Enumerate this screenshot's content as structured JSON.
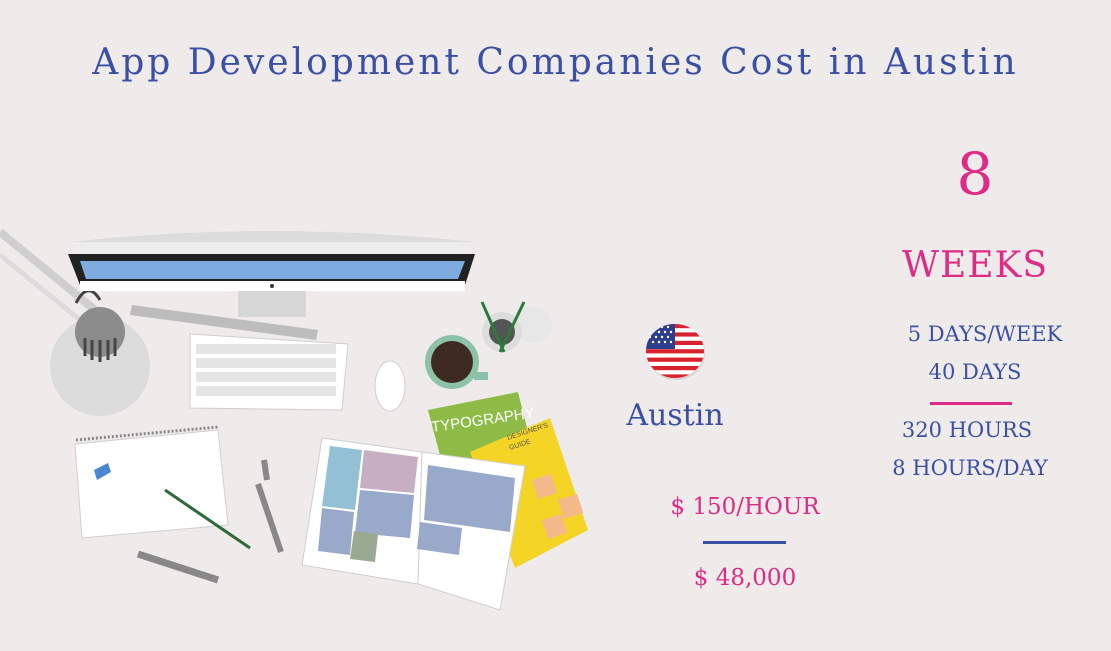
{
  "title": "App Development Companies Cost in Austin",
  "timeline": {
    "weeks_number": "8",
    "weeks_label": "WEEKS",
    "days_per_week": "5 DAYS/WEEK",
    "total_days": "40 DAYS",
    "total_hours": "320 HOURS",
    "hours_per_day": "8 HOURS/DAY"
  },
  "location": {
    "city": "Austin",
    "flag_icon": "us-flag-icon"
  },
  "cost": {
    "hourly_rate": "$ 150/HOUR",
    "total": "$ 48,000"
  },
  "illustration": {
    "book_typography_label": "TYPOGRAPHY",
    "book_guide_label_1": "DESIGNER'S",
    "book_guide_label_2": "GUIDE"
  },
  "colors": {
    "blue": "#3a4fa6",
    "pink": "#df2a86",
    "background": "#eeebea"
  }
}
